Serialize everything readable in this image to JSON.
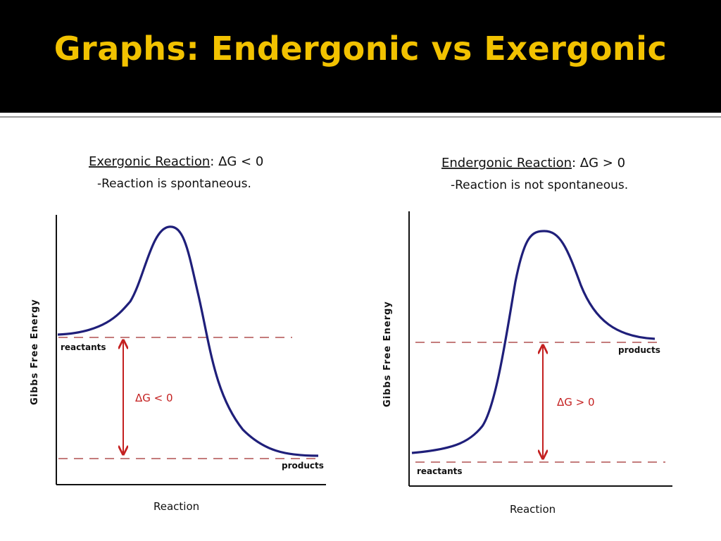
{
  "slide": {
    "title": "Graphs: Endergonic vs Exergonic"
  },
  "colors": {
    "title_bar": "#000000",
    "title_text": "#f2c200",
    "curve": "#1f1f7a",
    "guide_lines": "#b05050",
    "delta_arrow": "#c42020"
  },
  "exergonic": {
    "heading_name": "Exergonic Reaction",
    "heading_value": ": ΔG < 0",
    "subtitle": "-Reaction is spontaneous.",
    "y_axis_label": "Gibbs Free Energy",
    "x_axis_label": "Reaction",
    "label_reactants": "reactants",
    "label_products": "products",
    "delta_label": "ΔG < 0"
  },
  "endergonic": {
    "heading_name": "Endergonic Reaction",
    "heading_value": ": ΔG > 0",
    "subtitle": "-Reaction is not spontaneous.",
    "y_axis_label": "Gibbs Free Energy",
    "x_axis_label": "Reaction",
    "label_reactants": "reactants",
    "label_products": "products",
    "delta_label": "ΔG > 0"
  }
}
